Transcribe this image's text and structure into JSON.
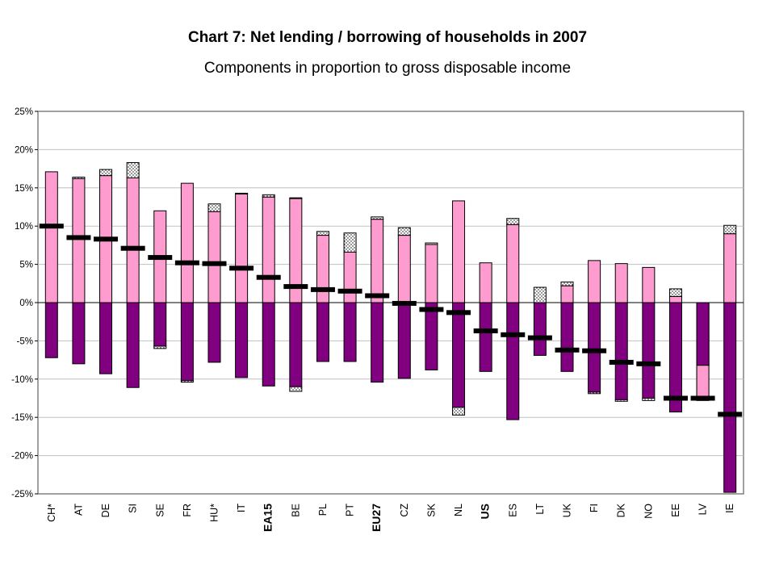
{
  "chart_data": {
    "type": "bar",
    "title": "Chart 7: Net lending / borrowing of households in 2007",
    "subtitle": "Components in proportion to gross disposable income",
    "xlabel": "",
    "ylabel": "",
    "ylim": [
      -25,
      25
    ],
    "y_ticks": [
      "25%",
      "20%",
      "15%",
      "10%",
      "5%",
      "0%",
      "-5%",
      "-10%",
      "-15%",
      "-20%",
      "-25%"
    ],
    "y_tick_values": [
      25,
      20,
      15,
      10,
      5,
      0,
      -5,
      -10,
      -15,
      -20,
      -25
    ],
    "grid": true,
    "colors": {
      "saving": "#ff9ccf",
      "investment": "#800080",
      "other": "#ffffff",
      "net": "#000000",
      "frame": "#808080",
      "gridline": "#c0c0c0"
    },
    "categories": [
      "CH*",
      "AT",
      "DE",
      "SI",
      "SE",
      "FR",
      "HU*",
      "IT",
      "EA15",
      "BE",
      "PL",
      "PT",
      "EU27",
      "CZ",
      "SK",
      "NL",
      "US",
      "ES",
      "LT",
      "UK",
      "FI",
      "DK",
      "NO",
      "EE",
      "LV",
      "IE"
    ],
    "bold_categories": [
      "EA15",
      "EU27",
      "US"
    ],
    "series": [
      {
        "values": [
          17.1,
          16.2,
          16.6,
          16.3,
          12.0,
          15.6,
          11.9,
          14.2,
          13.8,
          13.6,
          8.8,
          6.6,
          10.9,
          8.8,
          7.6,
          13.3,
          5.2,
          10.2,
          0.0,
          2.2,
          5.5,
          5.1,
          4.6,
          0.8,
          -8.2,
          9.0
        ]
      },
      {
        "values": [
          0.0,
          0.2,
          0.8,
          2.0,
          0.0,
          0.0,
          1.0,
          0.1,
          0.3,
          0.1,
          0.5,
          2.5,
          0.3,
          1.0,
          0.2,
          0.0,
          0.0,
          0.8,
          2.0,
          0.5,
          0.0,
          0.0,
          0.0,
          1.0,
          0.0,
          1.1
        ]
      },
      {
        "values": [
          -7.2,
          -8.0,
          -9.3,
          -11.1,
          -5.7,
          -10.2,
          -7.8,
          -9.8,
          -10.9,
          -11.0,
          -7.7,
          -7.7,
          -10.4,
          -9.9,
          -8.8,
          -13.7,
          -9.0,
          -15.3,
          -6.9,
          -9.0,
          -11.7,
          -12.7,
          -12.5,
          -14.3,
          -12.5,
          -24.8
        ]
      },
      {
        "values": [
          0.0,
          0.0,
          0.0,
          0.0,
          -0.3,
          -0.2,
          0.0,
          0.0,
          0.0,
          -0.6,
          0.0,
          0.0,
          0.0,
          0.0,
          0.0,
          -1.0,
          0.0,
          0.0,
          0.0,
          0.0,
          -0.2,
          -0.2,
          -0.3,
          0.0,
          -0.3,
          0.0
        ]
      },
      {
        "values": [
          10.0,
          8.5,
          8.3,
          7.1,
          5.9,
          5.2,
          5.1,
          4.5,
          3.3,
          2.1,
          1.7,
          1.5,
          0.9,
          -0.1,
          -0.9,
          -1.3,
          -3.7,
          -4.2,
          -4.6,
          -6.2,
          -6.3,
          -7.8,
          -8.0,
          -12.5,
          -12.5,
          -14.6
        ]
      }
    ]
  }
}
